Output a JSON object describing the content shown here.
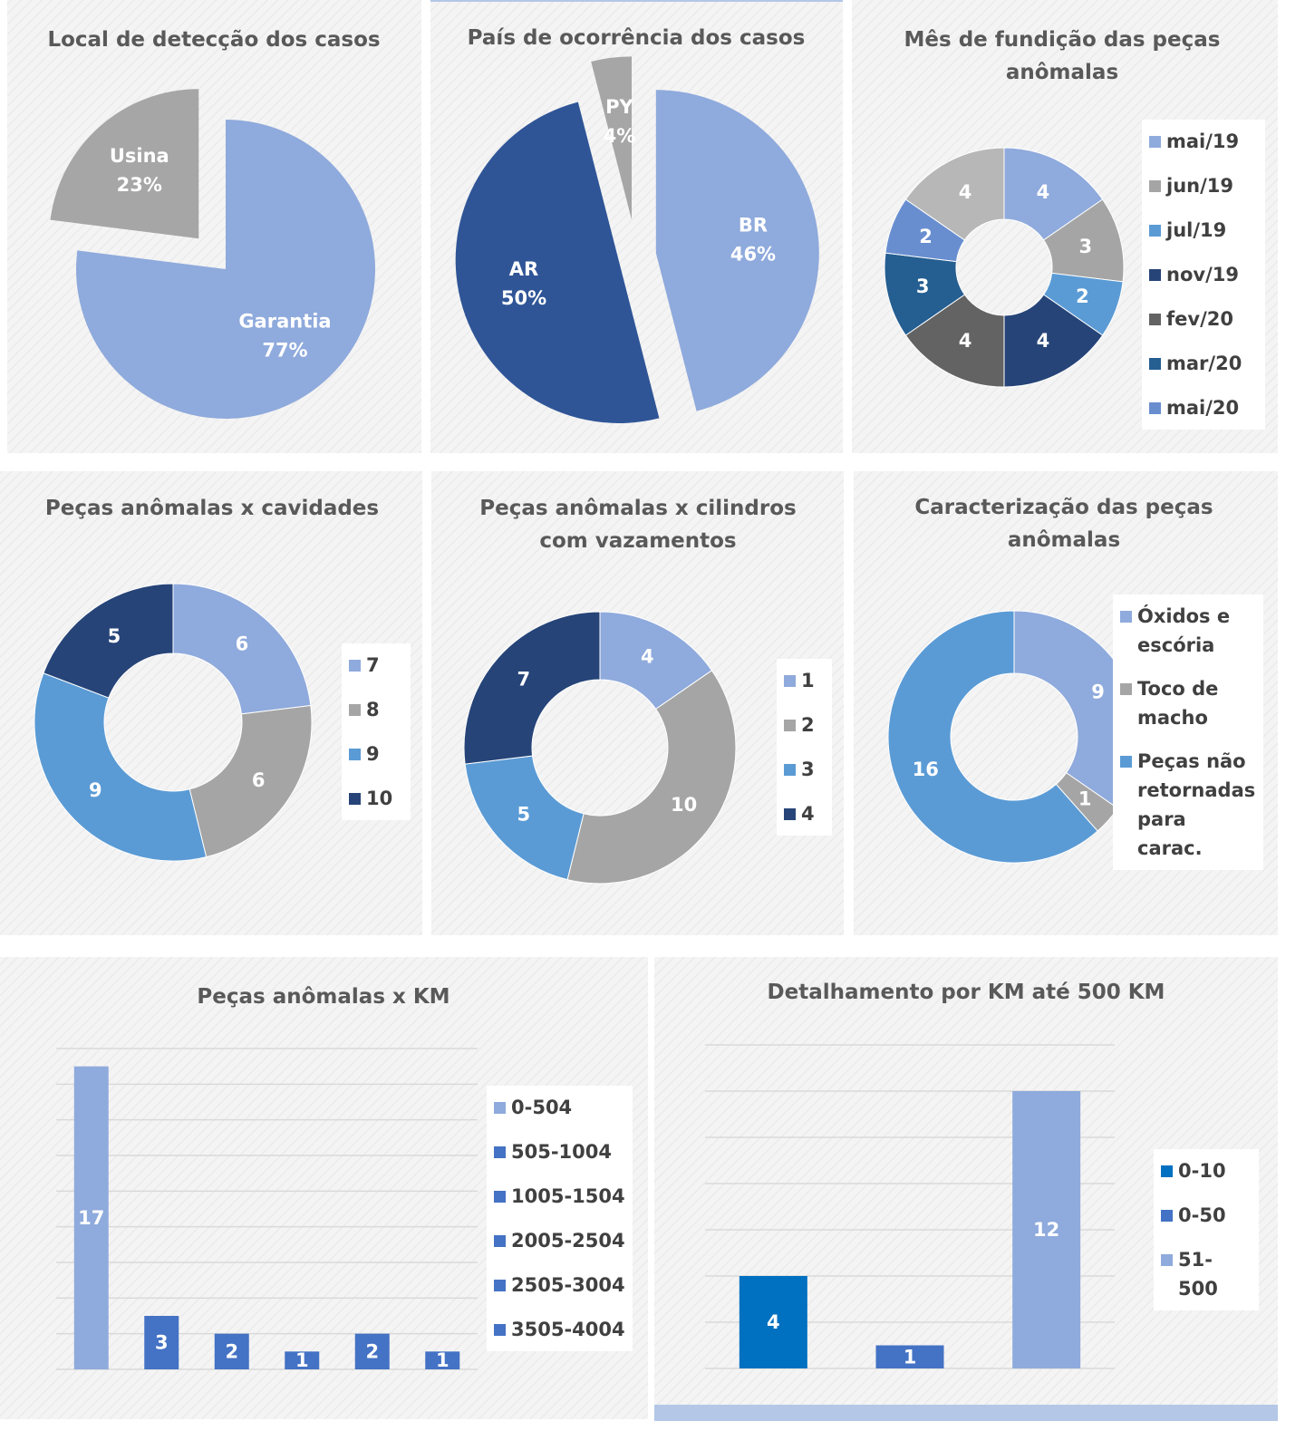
{
  "chart_data": [
    {
      "type": "pie",
      "title": "Local de detecção dos casos",
      "categories": [
        "Garantia",
        "Usina"
      ],
      "values": [
        77,
        23
      ],
      "value_labels": [
        "77%",
        "23%"
      ],
      "colors": [
        "#8faadc",
        "#a6a6a6"
      ]
    },
    {
      "type": "pie",
      "title": "País de ocorrência dos casos",
      "categories": [
        "BR",
        "AR",
        "PY"
      ],
      "values": [
        46,
        50,
        4
      ],
      "value_labels": [
        "46%",
        "50%",
        "4%"
      ],
      "colors": [
        "#8faadc",
        "#2f5597",
        "#a6a6a6"
      ]
    },
    {
      "type": "donut",
      "title": "Mês de fundição das peças anômalas",
      "categories": [
        "mai/19",
        "jun/19",
        "jul/19",
        "nov/19",
        "fev/20",
        "mar/20",
        "mai/20",
        null
      ],
      "values": [
        4,
        3,
        2,
        4,
        4,
        3,
        2,
        4
      ],
      "colors": [
        "#8faadc",
        "#a5a5a5",
        "#5b9bd5",
        "#264478",
        "#636363",
        "#255e91",
        "#698ed0",
        "#b7b7b7"
      ]
    },
    {
      "type": "donut",
      "title": "Peças anômalas x cavidades",
      "categories": [
        "7",
        "8",
        "9",
        "10"
      ],
      "values": [
        6,
        6,
        9,
        5
      ],
      "colors": [
        "#8faadc",
        "#a5a5a5",
        "#5b9bd5",
        "#264478"
      ]
    },
    {
      "type": "donut",
      "title": "Peças anômalas x cilindros com vazamentos",
      "categories": [
        "1",
        "2",
        "3",
        "4"
      ],
      "values": [
        4,
        10,
        5,
        7
      ],
      "colors": [
        "#8faadc",
        "#a5a5a5",
        "#5b9bd5",
        "#264478"
      ]
    },
    {
      "type": "donut",
      "title": "Caracterização das peças anômalas",
      "categories": [
        "Óxidos e escória",
        "Toco de macho",
        "Peças não retornadas para carac."
      ],
      "values": [
        9,
        1,
        16
      ],
      "colors": [
        "#8faadc",
        "#a5a5a5",
        "#5b9bd5"
      ]
    },
    {
      "type": "bar",
      "title": "Peças anômalas x KM",
      "categories": [
        "0-504",
        "505-1004",
        "1005-1504",
        "2005-2504",
        "2505-3004",
        "3505-4004"
      ],
      "values": [
        17,
        3,
        2,
        1,
        2,
        1
      ],
      "colors": [
        "#8faadc",
        "#4472c4",
        "#4472c4",
        "#4472c4",
        "#4472c4",
        "#4472c4"
      ],
      "ylim": [
        0,
        18
      ],
      "yticks": [
        0,
        2,
        4,
        6,
        8,
        10,
        12,
        14,
        16,
        18
      ],
      "grid": true
    },
    {
      "type": "bar",
      "title": "Detalhamento por KM até 500 KM",
      "categories": [
        "0-10",
        "0-50",
        "51-500"
      ],
      "values": [
        4,
        1,
        12
      ],
      "colors": [
        "#0070c0",
        "#4472c4",
        "#8faadc"
      ],
      "ylim": [
        0,
        14
      ],
      "yticks": [
        0,
        2,
        4,
        6,
        8,
        10,
        12,
        14
      ],
      "grid": true
    }
  ]
}
